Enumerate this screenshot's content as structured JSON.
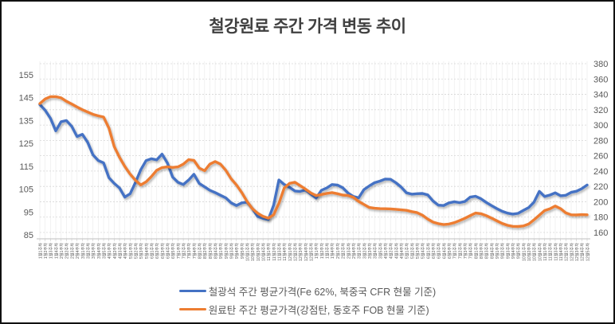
{
  "title": "철강원료 주간 가격 변동 추이",
  "chart_data": {
    "type": "line",
    "title": "철강원료 주간 가격 변동 추이",
    "legend_position": "bottom",
    "grid": true,
    "axis_text_color": "#595959",
    "left_axis": {
      "ticks": [
        155,
        145,
        135,
        125,
        115,
        105,
        95,
        85
      ],
      "range": [
        85,
        155
      ]
    },
    "right_axis": {
      "ticks": [
        380,
        360,
        340,
        320,
        300,
        280,
        260,
        240,
        220,
        200,
        180,
        160
      ],
      "range": [
        160,
        380
      ]
    },
    "x_labels": [
      "1월1주차",
      "1월2주차",
      "1월3주차",
      "1월4주차",
      "2월1주차",
      "2월2주차",
      "2월3주차",
      "2월4주차",
      "3월1주차",
      "3월2주차",
      "3월3주차",
      "3월4주차",
      "3월5주차",
      "4월1주차",
      "4월2주차",
      "4월3주차",
      "4월4주차",
      "5월1주차",
      "5월2주차",
      "5월3주차",
      "5월4주차",
      "6월1주차",
      "6월2주차",
      "6월3주차",
      "6월4주차",
      "6월5주차",
      "7월1주차",
      "7월2주차",
      "7월3주차",
      "7월4주차",
      "8월1주차",
      "8월2주차",
      "8월3주차",
      "8월4주차",
      "9월1주차",
      "9월2주차",
      "9월3주차",
      "9월4주차",
      "9월5주차",
      "10월1주차",
      "10월2주차",
      "10월3주차",
      "10월4주차",
      "11월1주차",
      "11월2주차",
      "11월3주차",
      "11월4주차",
      "12월1주차",
      "12월2주차",
      "12월3주차",
      "12월4주차",
      "12월5주차",
      "1월1주차",
      "1월2주차",
      "1월3주차",
      "1월4주차",
      "2월1주차",
      "2월2주차",
      "2월3주차",
      "2월4주차",
      "3월1주차",
      "3월2주차",
      "3월3주차",
      "3월4주차",
      "3월5주차",
      "4월1주차",
      "4월2주차",
      "4월3주차",
      "4월4주차",
      "5월1주차",
      "5월2주차",
      "5월3주차",
      "5월4주차",
      "6월1주차",
      "6월2주차",
      "6월3주차",
      "6월4주차",
      "6월5주차",
      "7월1주차",
      "7월2주차",
      "7월3주차",
      "7월4주차",
      "8월1주차",
      "8월2주차",
      "8월3주차",
      "8월4주차",
      "9월1주차",
      "9월2주차",
      "9월3주차",
      "9월4주차",
      "9월5주차",
      "10월1주차",
      "10월2주차",
      "10월3주차",
      "10월4주차",
      "11월1주차",
      "11월2주차",
      "11월3주차",
      "11월4주차",
      "12월1주차",
      "12월2주차",
      "12월3주차",
      "12월4주차",
      "12월5주차"
    ],
    "series": [
      {
        "name": "철광석 주간 평균가격(Fe 62%, 북중국 CFR 현물 기준)",
        "color": "#4472C4",
        "axis": "left",
        "values": [
          142,
          139.5,
          136,
          130.5,
          134.5,
          135,
          132.5,
          128,
          129,
          125.5,
          120,
          117.5,
          116.5,
          110,
          107.5,
          105.5,
          101.5,
          103,
          108,
          113.5,
          117.5,
          118.3,
          117.8,
          120.3,
          116.5,
          110.3,
          108,
          107,
          109,
          111.5,
          107.5,
          106,
          104.5,
          103.5,
          102.3,
          101.2,
          99,
          97.8,
          99,
          99.3,
          96.5,
          93,
          92.2,
          91.7,
          98,
          109,
          107,
          105.8,
          104.2,
          104,
          104.6,
          102.8,
          101.1,
          104.5,
          105.5,
          107,
          106.8,
          105.6,
          103.3,
          101.8,
          101.2,
          104.8,
          106.4,
          107.8,
          108.5,
          109.4,
          109.3,
          107.8,
          105.9,
          103.4,
          102.8,
          103,
          103.1,
          102.5,
          99.8,
          98,
          97.8,
          99,
          99.5,
          99.1,
          99.6,
          101.5,
          101.9,
          100.8,
          99.2,
          97.8,
          96.5,
          95.3,
          94.5,
          94.1,
          94.4,
          95.7,
          96.9,
          99.3,
          104,
          101.8,
          102.4,
          103.4,
          102.1,
          102.3,
          103.6,
          104.1,
          105.2,
          106.8
        ]
      },
      {
        "name": "원료탄 주간 평균가격(강점탄, 동호주 FOB 현물 기준)",
        "color": "#ED7D31",
        "axis": "right",
        "values": [
          328,
          334,
          337,
          337,
          335.5,
          331,
          327.5,
          323.5,
          320,
          317,
          314,
          312,
          310.5,
          296,
          272,
          258,
          246,
          236,
          228,
          222,
          226,
          233,
          241,
          244.6,
          245.5,
          244.8,
          245.5,
          249,
          255,
          254,
          244,
          240.5,
          249,
          252.5,
          249,
          241,
          230,
          222,
          212,
          200.5,
          191,
          185,
          181,
          178.7,
          183,
          198,
          218,
          224,
          225.5,
          221,
          216.5,
          211.5,
          208,
          209.5,
          211,
          212,
          210.5,
          208.8,
          208.2,
          206,
          200.5,
          196.5,
          192.6,
          191.5,
          191,
          190.9,
          190.7,
          190.2,
          189.5,
          188.8,
          187.2,
          185.8,
          182.5,
          177.5,
          173.5,
          171.5,
          170.3,
          171,
          172.8,
          175.5,
          178.5,
          182,
          185.3,
          184.5,
          182,
          178.8,
          175.3,
          171.8,
          169.3,
          168,
          167.8,
          168.5,
          171,
          176.5,
          182.5,
          188.5,
          190.8,
          194.5,
          191,
          185.5,
          183,
          182.8,
          183.2,
          183
        ]
      }
    ]
  },
  "legend": {
    "items": [
      {
        "label": "철광석 주간 평균가격(Fe 62%, 북중국 CFR 현물 기준)",
        "color": "#4472C4"
      },
      {
        "label": "원료탄 주간 평균가격(강점탄, 동호주 FOB 현물 기준)",
        "color": "#ED7D31"
      }
    ]
  }
}
